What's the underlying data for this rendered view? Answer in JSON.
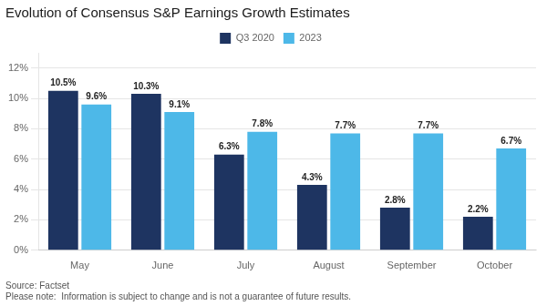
{
  "chart_data": {
    "type": "bar",
    "title": "Evolution of Consensus S&P Earnings Growth Estimates",
    "categories": [
      "May",
      "June",
      "July",
      "August",
      "September",
      "October"
    ],
    "series": [
      {
        "name": "Q3 2020",
        "color": "#1e3461",
        "values": [
          10.5,
          10.3,
          6.3,
          4.3,
          2.8,
          2.2
        ],
        "value_labels": [
          "10.5%",
          "10.3%",
          "6.3%",
          "4.3%",
          "2.8%",
          "2.2%"
        ]
      },
      {
        "name": "2023",
        "color": "#4db8e8",
        "values": [
          9.6,
          9.1,
          7.8,
          7.7,
          7.7,
          6.7
        ],
        "value_labels": [
          "9.6%",
          "9.1%",
          "7.8%",
          "7.7%",
          "7.7%",
          "6.7%"
        ]
      }
    ],
    "ylim": [
      0,
      13
    ],
    "yticks": [
      {
        "value": 0,
        "label": "0%"
      },
      {
        "value": 2,
        "label": "2%"
      },
      {
        "value": 4,
        "label": "4%"
      },
      {
        "value": 6,
        "label": "6%"
      },
      {
        "value": 8,
        "label": "8%"
      },
      {
        "value": 10,
        "label": "10%"
      },
      {
        "value": 12,
        "label": "12%"
      }
    ],
    "grid": true,
    "legend": "top",
    "data_labels": true,
    "annotations": [
      "Source: Factset",
      "Please note:  Information is subject to change and is not a guarantee of future results."
    ]
  }
}
